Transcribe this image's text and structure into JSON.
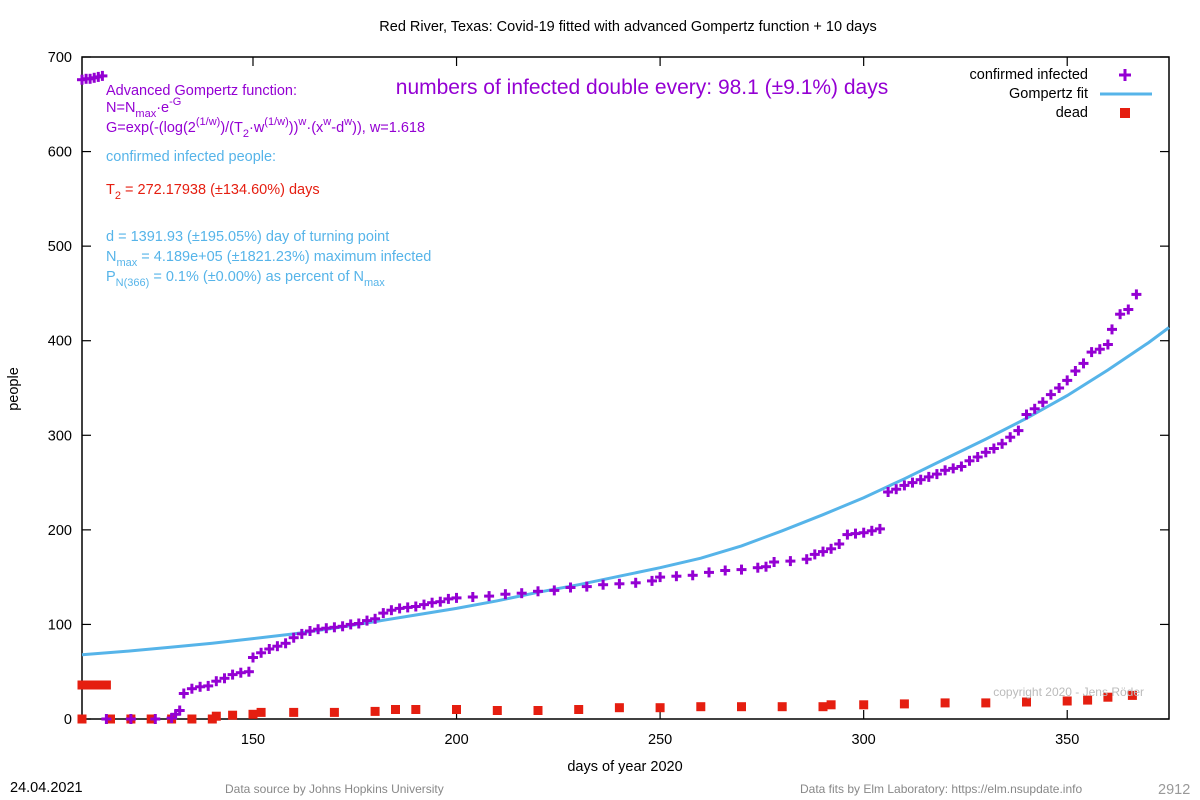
{
  "chart_data": {
    "type": "scatter",
    "title": "Red River,  Texas: Covid-19 fitted with advanced Gompertz function + 10 days",
    "xlabel": "days of year 2020",
    "ylabel": "people",
    "xlim": [
      108,
      375
    ],
    "ylim": [
      0,
      700
    ],
    "xticks": [
      150,
      200,
      250,
      300,
      350
    ],
    "yticks": [
      0,
      100,
      200,
      300,
      400,
      500,
      600,
      700
    ],
    "grid": false,
    "legend_position": "top-right",
    "legend": [
      {
        "label": "confirmed infected",
        "marker": "plus",
        "color": "#9400d3"
      },
      {
        "label": "Gompertz fit",
        "marker": "line",
        "color": "#56b4e9"
      },
      {
        "label": "dead",
        "marker": "square",
        "color": "#e51e10"
      }
    ],
    "series": [
      {
        "name": "confirmed infected",
        "color": "#9400d3",
        "points": [
          [
            108,
            676
          ],
          [
            109,
            677
          ],
          [
            110,
            677
          ],
          [
            111,
            678
          ],
          [
            112,
            679
          ],
          [
            113,
            680
          ],
          [
            114,
            0
          ],
          [
            120,
            0
          ],
          [
            126,
            0
          ],
          [
            130,
            1
          ],
          [
            131,
            5
          ],
          [
            132,
            9
          ],
          [
            133,
            27
          ],
          [
            135,
            32
          ],
          [
            137,
            34
          ],
          [
            139,
            35
          ],
          [
            141,
            40
          ],
          [
            143,
            43
          ],
          [
            145,
            47
          ],
          [
            147,
            49
          ],
          [
            149,
            50
          ],
          [
            150,
            65
          ],
          [
            152,
            70
          ],
          [
            154,
            74
          ],
          [
            156,
            77
          ],
          [
            158,
            80
          ],
          [
            160,
            86
          ],
          [
            162,
            90
          ],
          [
            164,
            93
          ],
          [
            166,
            95
          ],
          [
            168,
            96
          ],
          [
            170,
            97
          ],
          [
            172,
            98
          ],
          [
            174,
            100
          ],
          [
            176,
            101
          ],
          [
            178,
            104
          ],
          [
            180,
            106
          ],
          [
            182,
            112
          ],
          [
            184,
            115
          ],
          [
            186,
            117
          ],
          [
            188,
            118
          ],
          [
            190,
            119
          ],
          [
            192,
            121
          ],
          [
            194,
            123
          ],
          [
            196,
            124
          ],
          [
            198,
            127
          ],
          [
            200,
            128
          ],
          [
            204,
            129
          ],
          [
            208,
            130
          ],
          [
            212,
            132
          ],
          [
            216,
            133
          ],
          [
            220,
            135
          ],
          [
            224,
            136
          ],
          [
            228,
            139
          ],
          [
            232,
            140
          ],
          [
            236,
            142
          ],
          [
            240,
            143
          ],
          [
            244,
            144
          ],
          [
            248,
            146
          ],
          [
            250,
            150
          ],
          [
            254,
            151
          ],
          [
            258,
            152
          ],
          [
            262,
            155
          ],
          [
            266,
            157
          ],
          [
            270,
            158
          ],
          [
            274,
            160
          ],
          [
            276,
            161
          ],
          [
            278,
            166
          ],
          [
            282,
            167
          ],
          [
            286,
            169
          ],
          [
            288,
            174
          ],
          [
            290,
            177
          ],
          [
            292,
            180
          ],
          [
            294,
            185
          ],
          [
            296,
            195
          ],
          [
            298,
            196
          ],
          [
            300,
            197
          ],
          [
            302,
            199
          ],
          [
            304,
            201
          ],
          [
            306,
            240
          ],
          [
            308,
            243
          ],
          [
            310,
            247
          ],
          [
            312,
            250
          ],
          [
            314,
            253
          ],
          [
            316,
            256
          ],
          [
            318,
            259
          ],
          [
            320,
            263
          ],
          [
            322,
            265
          ],
          [
            324,
            267
          ],
          [
            326,
            273
          ],
          [
            328,
            277
          ],
          [
            330,
            282
          ],
          [
            332,
            286
          ],
          [
            334,
            291
          ],
          [
            336,
            298
          ],
          [
            338,
            305
          ],
          [
            340,
            322
          ],
          [
            342,
            328
          ],
          [
            344,
            335
          ],
          [
            346,
            343
          ],
          [
            348,
            350
          ],
          [
            350,
            358
          ],
          [
            352,
            368
          ],
          [
            354,
            376
          ],
          [
            356,
            388
          ],
          [
            358,
            391
          ],
          [
            360,
            396
          ],
          [
            361,
            412
          ],
          [
            363,
            428
          ],
          [
            365,
            433
          ],
          [
            367,
            449
          ]
        ]
      },
      {
        "name": "Gompertz fit",
        "color": "#56b4e9",
        "points": [
          [
            108,
            68
          ],
          [
            120,
            72
          ],
          [
            130,
            76
          ],
          [
            140,
            80
          ],
          [
            150,
            85
          ],
          [
            160,
            90
          ],
          [
            170,
            96
          ],
          [
            180,
            103
          ],
          [
            190,
            110
          ],
          [
            200,
            117
          ],
          [
            210,
            125
          ],
          [
            220,
            134
          ],
          [
            230,
            142
          ],
          [
            240,
            151
          ],
          [
            250,
            160
          ],
          [
            260,
            170
          ],
          [
            270,
            183
          ],
          [
            280,
            199
          ],
          [
            290,
            216
          ],
          [
            300,
            234
          ],
          [
            310,
            254
          ],
          [
            320,
            275
          ],
          [
            330,
            296
          ],
          [
            340,
            318
          ],
          [
            350,
            342
          ],
          [
            360,
            369
          ],
          [
            370,
            398
          ],
          [
            375,
            414
          ]
        ]
      },
      {
        "name": "dead",
        "color": "#e51e10",
        "points": [
          [
            108,
            36
          ],
          [
            109,
            36
          ],
          [
            110,
            36
          ],
          [
            111,
            36
          ],
          [
            112,
            36
          ],
          [
            113,
            36
          ],
          [
            114,
            36
          ],
          [
            108,
            0
          ],
          [
            115,
            0
          ],
          [
            120,
            0
          ],
          [
            125,
            0
          ],
          [
            130,
            0
          ],
          [
            135,
            0
          ],
          [
            140,
            0
          ],
          [
            141,
            3
          ],
          [
            145,
            4
          ],
          [
            150,
            5
          ],
          [
            152,
            7
          ],
          [
            160,
            7
          ],
          [
            170,
            7
          ],
          [
            180,
            8
          ],
          [
            185,
            10
          ],
          [
            190,
            10
          ],
          [
            200,
            10
          ],
          [
            210,
            9
          ],
          [
            220,
            9
          ],
          [
            230,
            10
          ],
          [
            240,
            12
          ],
          [
            250,
            12
          ],
          [
            260,
            13
          ],
          [
            270,
            13
          ],
          [
            280,
            13
          ],
          [
            290,
            13
          ],
          [
            292,
            15
          ],
          [
            300,
            15
          ],
          [
            310,
            16
          ],
          [
            320,
            17
          ],
          [
            330,
            17
          ],
          [
            340,
            18
          ],
          [
            350,
            19
          ],
          [
            355,
            20
          ],
          [
            360,
            23
          ],
          [
            366,
            25
          ]
        ]
      }
    ]
  },
  "annotations": {
    "gompertz_title": "Advanced Gompertz function:",
    "formula1": "N=N",
    "formula1_sub": "max",
    "formula1_rest": "·e",
    "formula1_sup": "-G",
    "formula2_a": " G=exp(-(log(2",
    "formula2_sup1": "(1/w)",
    "formula2_b": ")/(T",
    "formula2_sub": "2",
    "formula2_c": "·w",
    "formula2_sup2": "(1/w)",
    "formula2_d": "))",
    "formula2_sup3": "w",
    "formula2_e": "·(x",
    "formula2_sup4": "w",
    "formula2_f": "-d",
    "formula2_sup5": "w",
    "formula2_g": ")), w=1.618",
    "confirmed_people": "confirmed infected people:",
    "t2_label": "T",
    "t2_sub": "2",
    "t2_value": " = 272.17938 (±134.60%) days",
    "d_line": "d = 1391.93 (±195.05%) day of turning point",
    "nmax_label": "N",
    "nmax_sub": "max",
    "nmax_value": " = 4.189e+05 (±1821.23%) maximum infected",
    "p_label": "P",
    "p_sub": "N(366)",
    "p_value": " = 0.1% (±0.00%) as percent of N",
    "p_sub2": "max",
    "doubling": "numbers of infected double every: 98.1 (±9.1%) days",
    "copyright": "copyright 2020 - Jens Röder"
  },
  "footer": {
    "date": "24.04.2021",
    "source": "Data source by Johns Hopkins University",
    "fits": "Data fits by Elm Laboratory: https://elm.nsupdate.info",
    "id": "2912"
  },
  "colors": {
    "purple": "#9400d3",
    "blue": "#56b4e9",
    "red": "#e51e10",
    "axis": "#000000",
    "footer_gray": "#888888"
  }
}
